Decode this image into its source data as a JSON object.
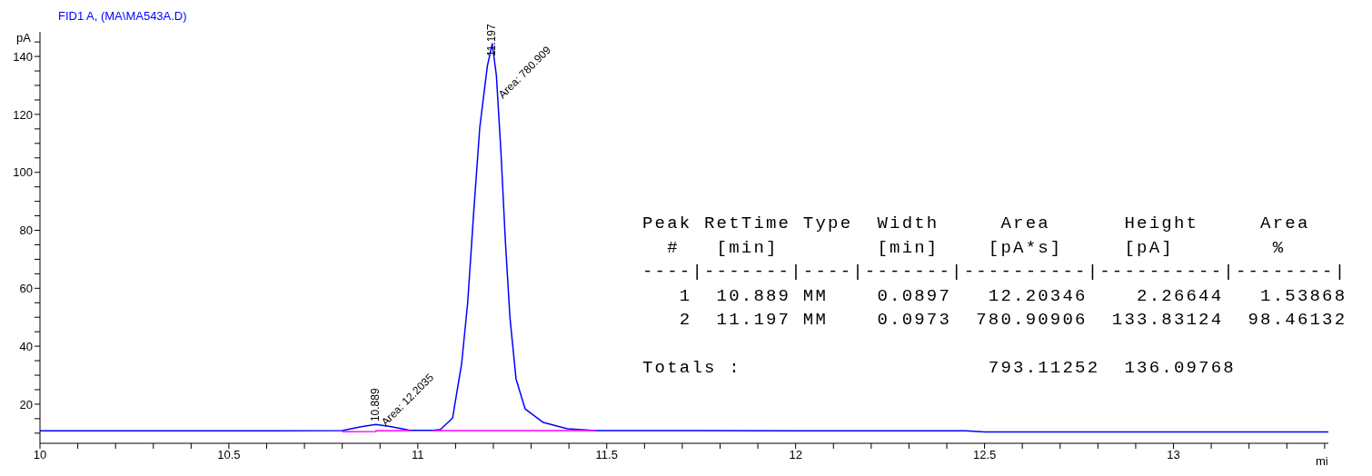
{
  "chart_data": {
    "type": "line",
    "title": "FID1 A,  (MA\\MA543A.D)",
    "xlabel": "mi",
    "ylabel": "pA",
    "xlim": [
      10,
      13.41
    ],
    "ylim": [
      6.5,
      148.5
    ],
    "xticks": [
      10,
      {
        "value": 10.1,
        "label": null
      },
      {
        "value": 10.2,
        "label": null
      },
      {
        "value": 10.3,
        "label": null
      },
      {
        "value": 10.4,
        "label": null
      },
      10.5,
      {
        "value": 10.6,
        "label": null
      },
      {
        "value": 10.7,
        "label": null
      },
      {
        "value": 10.8,
        "label": null
      },
      {
        "value": 10.9,
        "label": null
      },
      11,
      {
        "value": 11.1,
        "label": null
      },
      {
        "value": 11.2,
        "label": null
      },
      {
        "value": 11.3,
        "label": null
      },
      {
        "value": 11.4,
        "label": null
      },
      11.5,
      {
        "value": 11.6,
        "label": null
      },
      {
        "value": 11.7,
        "label": null
      },
      {
        "value": 11.8,
        "label": null
      },
      {
        "value": 11.9,
        "label": null
      },
      12,
      {
        "value": 12.1,
        "label": null
      },
      {
        "value": 12.2,
        "label": null
      },
      {
        "value": 12.3,
        "label": null
      },
      {
        "value": 12.4,
        "label": null
      },
      12.5,
      {
        "value": 12.6,
        "label": null
      },
      {
        "value": 12.7,
        "label": null
      },
      {
        "value": 12.8,
        "label": null
      },
      {
        "value": 12.9,
        "label": null
      },
      13,
      {
        "value": 13.1,
        "label": null
      },
      {
        "value": 13.2,
        "label": null
      },
      {
        "value": 13.3,
        "label": null
      },
      {
        "value": 13.4,
        "label": null
      }
    ],
    "yticks": [
      {
        "value": 10,
        "label": null
      },
      {
        "value": 15,
        "label": null
      },
      20,
      {
        "value": 25,
        "label": null
      },
      {
        "value": 30,
        "label": null
      },
      {
        "value": 35,
        "label": null
      },
      40,
      {
        "value": 45,
        "label": null
      },
      {
        "value": 50,
        "label": null
      },
      {
        "value": 55,
        "label": null
      },
      60,
      {
        "value": 65,
        "label": null
      },
      {
        "value": 70,
        "label": null
      },
      {
        "value": 75,
        "label": null
      },
      80,
      {
        "value": 85,
        "label": null
      },
      {
        "value": 90,
        "label": null
      },
      {
        "value": 95,
        "label": null
      },
      100,
      {
        "value": 105,
        "label": null
      },
      {
        "value": 110,
        "label": null
      },
      {
        "value": 115,
        "label": null
      },
      120,
      {
        "value": 125,
        "label": null
      },
      {
        "value": 130,
        "label": null
      },
      {
        "value": 135,
        "label": null
      },
      140,
      {
        "value": 145,
        "label": null
      }
    ],
    "grid": false,
    "marker": "none",
    "line_style": "solid",
    "series": [
      {
        "color": "#0000ff",
        "x": [
          10.0,
          10.6,
          10.8,
          10.85,
          10.889,
          10.93,
          10.98,
          11.04,
          11.06,
          11.092,
          11.116,
          11.132,
          11.148,
          11.164,
          11.184,
          11.197,
          11.208,
          11.22,
          11.232,
          11.244,
          11.26,
          11.284,
          11.332,
          11.396,
          11.47,
          12.0,
          12.45,
          12.5,
          13.41
        ],
        "values": [
          10.8,
          10.8,
          10.9,
          12.2,
          13.0,
          12.2,
          11.0,
          11.0,
          11.3,
          15.2,
          34.0,
          55.0,
          86.4,
          115.5,
          136.6,
          144.4,
          133.4,
          107.1,
          75.7,
          49.7,
          28.7,
          18.4,
          13.7,
          11.5,
          10.9,
          10.8,
          10.8,
          10.4,
          10.4
        ]
      },
      {
        "color": "#ff00ff",
        "x": [
          10.8,
          10.889,
          10.889,
          10.98,
          10.99,
          11.04,
          11.47
        ],
        "values": [
          10.5,
          10.6,
          10.8,
          10.9,
          null,
          10.9,
          10.9
        ]
      }
    ],
    "annotations": [
      {
        "text": "10.889",
        "x": 10.889,
        "y": 14
      },
      {
        "text": "Area: 12.2035",
        "x": 10.91,
        "y": 13
      },
      {
        "text": "11.197",
        "x": 11.197,
        "y": 140
      },
      {
        "text": "Area: 780.909",
        "x": 11.22,
        "y": 126
      },
      "Peak RetTime Type  Width     Area      Height     Area  ",
      "  #   [min]        [min]    [pA*s]     [pA]        %    ",
      "----|-------|----|-------|----------|----------|--------|",
      "   1  10.889 MM    0.0897   12.20346    2.26644   1.53868",
      "   2  11.197 MM    0.0973  780.90906  133.83124  98.46132",
      "Totals :                    793.11252  136.09768"
    ]
  }
}
